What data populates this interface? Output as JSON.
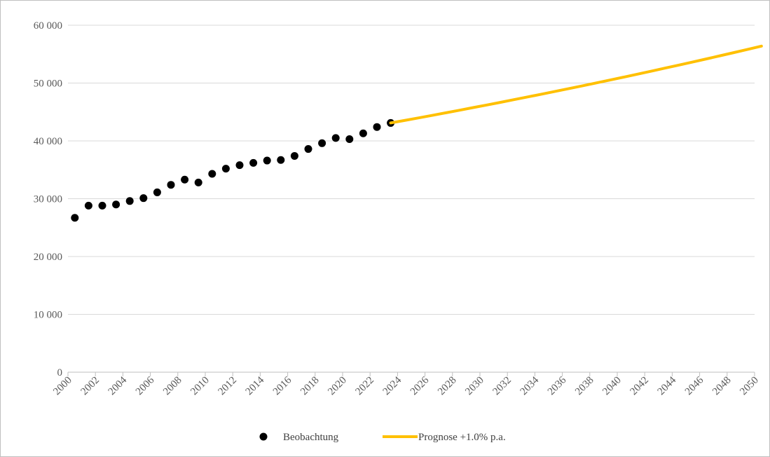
{
  "chart_data": {
    "type": "scatter",
    "title": "",
    "xlabel": "",
    "ylabel": "",
    "xlim": [
      2000,
      2050
    ],
    "ylim": [
      0,
      60000
    ],
    "y_ticks": [
      0,
      10000,
      20000,
      30000,
      40000,
      50000,
      60000
    ],
    "y_tick_labels": [
      "0",
      "10 000",
      "20 000",
      "30 000",
      "40 000",
      "50 000",
      "60 000"
    ],
    "x_ticks": [
      2000,
      2002,
      2004,
      2006,
      2008,
      2010,
      2012,
      2014,
      2016,
      2018,
      2020,
      2022,
      2024,
      2026,
      2028,
      2030,
      2032,
      2034,
      2036,
      2038,
      2040,
      2042,
      2044,
      2046,
      2048,
      2050
    ],
    "x_tick_labels": [
      "2000",
      "2002",
      "2004",
      "2006",
      "2008",
      "2010",
      "2012",
      "2014",
      "2016",
      "2018",
      "2020",
      "2022",
      "2024",
      "2026",
      "2028",
      "2030",
      "2032",
      "2034",
      "2036",
      "2038",
      "2040",
      "2042",
      "2044",
      "2046",
      "2048",
      "2050"
    ],
    "grid": "horizontal",
    "legend_position": "bottom",
    "series": [
      {
        "name": "Beobachtung",
        "kind": "scatter",
        "color": "#000000",
        "points": [
          [
            2000,
            26700
          ],
          [
            2001,
            28800
          ],
          [
            2002,
            28800
          ],
          [
            2003,
            29000
          ],
          [
            2004,
            29600
          ],
          [
            2005,
            30100
          ],
          [
            2006,
            31100
          ],
          [
            2007,
            32400
          ],
          [
            2008,
            33300
          ],
          [
            2009,
            32800
          ],
          [
            2010,
            34300
          ],
          [
            2011,
            35200
          ],
          [
            2012,
            35800
          ],
          [
            2013,
            36200
          ],
          [
            2014,
            36600
          ],
          [
            2015,
            36700
          ],
          [
            2016,
            37400
          ],
          [
            2017,
            38600
          ],
          [
            2018,
            39600
          ],
          [
            2019,
            40500
          ],
          [
            2020,
            40300
          ],
          [
            2021,
            41300
          ],
          [
            2022,
            42400
          ],
          [
            2023,
            43100
          ]
        ]
      },
      {
        "name": "Prognose +1.0% p.a.",
        "kind": "line",
        "color": "#FFC000",
        "start": [
          2023,
          43100
        ],
        "end": 2050,
        "growth_rate": 0.01
      }
    ]
  }
}
